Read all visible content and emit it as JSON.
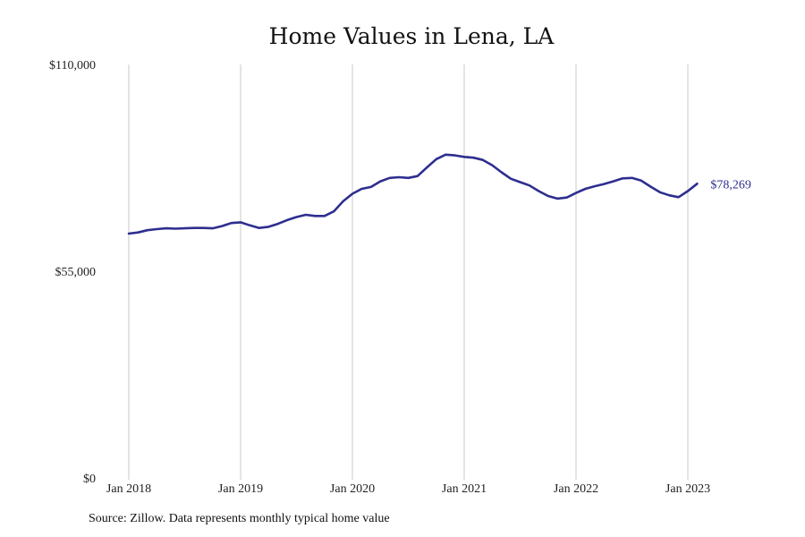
{
  "chart_data": {
    "type": "line",
    "title": "Home Values in Lena, LA",
    "xlabel": "",
    "ylabel": "",
    "x_start": "2018-01",
    "x_end": "2023-02",
    "x_ticks": [
      "Jan 2018",
      "Jan 2019",
      "Jan 2020",
      "Jan 2021",
      "Jan 2022",
      "Jan 2023"
    ],
    "y_ticks": [
      "$0",
      "$55,000",
      "$110,000"
    ],
    "ylim": [
      0,
      110000
    ],
    "grid": "vertical",
    "line_color": "#2e2e8f",
    "grid_color": "#c8c8c8",
    "end_label": "$78,269",
    "series": [
      {
        "values": [
          65000,
          65300,
          65900,
          66200,
          66400,
          66300,
          66400,
          66500,
          66500,
          66400,
          67000,
          67800,
          68000,
          67200,
          66500,
          66800,
          67600,
          68600,
          69400,
          70000,
          69700,
          69700,
          70900,
          73600,
          75600,
          76900,
          77400,
          78900,
          79800,
          80000,
          79800,
          80300,
          82600,
          84800,
          86000,
          85800,
          85400,
          85200,
          84600,
          83200,
          81300,
          79600,
          78700,
          77800,
          76300,
          75000,
          74300,
          74600,
          75800,
          76900,
          77600,
          78200,
          78900,
          79700,
          79800,
          79100,
          77500,
          76000,
          75200,
          74700,
          76300,
          78269
        ]
      }
    ]
  },
  "source_note": "Source: Zillow. Data represents monthly typical home value"
}
